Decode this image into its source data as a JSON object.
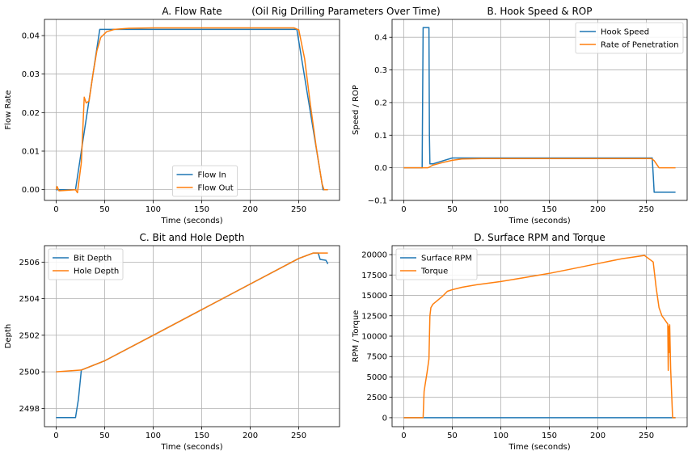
{
  "figure": {
    "suptitle": "(Oil Rig Drilling Parameters Over Time)"
  },
  "colors": {
    "blue": "#1f77b4",
    "orange": "#ff7f0e",
    "grid": "#b0b0b0"
  },
  "chart_data": [
    {
      "id": "A",
      "type": "line",
      "title": "A. Flow Rate",
      "xlabel": "Time (seconds)",
      "ylabel": "Flow Rate",
      "xlim": [
        -12,
        292
      ],
      "ylim": [
        -0.0028,
        0.0442
      ],
      "xticks": [
        0,
        50,
        100,
        150,
        200,
        250
      ],
      "yticks": [
        0.0,
        0.01,
        0.02,
        0.03,
        0.04
      ],
      "ytick_labels": [
        "0.00",
        "0.01",
        "0.02",
        "0.03",
        "0.04"
      ],
      "grid": true,
      "legend_position": "lower-center",
      "series": [
        {
          "name": "Flow In",
          "color": "#1f77b4",
          "x": [
            0,
            20,
            45,
            50,
            100,
            150,
            200,
            248,
            275,
            280
          ],
          "y": [
            0.0,
            0.0,
            0.0416,
            0.0416,
            0.0416,
            0.0416,
            0.0416,
            0.0416,
            0.0,
            0.0
          ]
        },
        {
          "name": "Flow Out",
          "color": "#ff7f0e",
          "x": [
            0,
            1,
            3,
            20,
            22,
            26,
            29,
            31,
            34,
            38,
            42,
            46,
            52,
            60,
            75,
            100,
            150,
            200,
            245,
            250,
            256,
            262,
            268,
            274,
            276,
            280
          ],
          "y": [
            0.0,
            0.0008,
            -0.0003,
            0.0,
            -0.0008,
            0.007,
            0.024,
            0.0225,
            0.023,
            0.03,
            0.036,
            0.0395,
            0.041,
            0.0416,
            0.0419,
            0.042,
            0.042,
            0.042,
            0.042,
            0.0415,
            0.034,
            0.022,
            0.011,
            0.0015,
            0.0,
            0.0
          ]
        }
      ]
    },
    {
      "id": "B",
      "type": "line",
      "title": "B. Hook Speed & ROP",
      "xlabel": "Time (seconds)",
      "ylabel": "Speed / ROP",
      "xlim": [
        -12,
        292
      ],
      "ylim": [
        -0.1,
        0.455
      ],
      "xticks": [
        0,
        50,
        100,
        150,
        200,
        250
      ],
      "yticks": [
        -0.1,
        0.0,
        0.1,
        0.2,
        0.3,
        0.4
      ],
      "ytick_labels": [
        "−0.1",
        "0.0",
        "0.1",
        "0.2",
        "0.3",
        "0.4"
      ],
      "grid": true,
      "legend_position": "upper-right",
      "series": [
        {
          "name": "Hook Speed",
          "color": "#1f77b4",
          "x": [
            0,
            19,
            20,
            21,
            26,
            26.5,
            27,
            30,
            50,
            100,
            150,
            200,
            256,
            257,
            258,
            280
          ],
          "y": [
            0.0,
            0.0,
            0.43,
            0.43,
            0.43,
            0.1,
            0.012,
            0.012,
            0.03,
            0.03,
            0.03,
            0.03,
            0.03,
            -0.02,
            -0.075,
            -0.075
          ]
        },
        {
          "name": "Rate of Penetration",
          "color": "#ff7f0e",
          "x": [
            0,
            25,
            30,
            40,
            50,
            60,
            80,
            100,
            150,
            200,
            255,
            258,
            263,
            280
          ],
          "y": [
            0.0,
            0.0,
            0.008,
            0.016,
            0.023,
            0.027,
            0.028,
            0.028,
            0.028,
            0.028,
            0.028,
            0.022,
            0.0,
            0.0
          ]
        }
      ]
    },
    {
      "id": "C",
      "type": "line",
      "title": "C. Bit and Hole Depth",
      "xlabel": "Time (seconds)",
      "ylabel": "Depth",
      "xlim": [
        -12,
        292
      ],
      "ylim": [
        2497.0,
        2506.9
      ],
      "xticks": [
        0,
        50,
        100,
        150,
        200,
        250
      ],
      "yticks": [
        2498,
        2500,
        2502,
        2504,
        2506
      ],
      "ytick_labels": [
        "2498",
        "2500",
        "2502",
        "2504",
        "2506"
      ],
      "grid": true,
      "legend_position": "upper-left",
      "series": [
        {
          "name": "Bit Depth",
          "color": "#1f77b4",
          "x": [
            0,
            20,
            23,
            26,
            50,
            100,
            150,
            200,
            250,
            265,
            270,
            272,
            278,
            280
          ],
          "y": [
            2497.5,
            2497.5,
            2498.5,
            2500.1,
            2500.6,
            2502.0,
            2503.4,
            2504.8,
            2506.2,
            2506.5,
            2506.5,
            2506.15,
            2506.1,
            2505.9
          ]
        },
        {
          "name": "Hole Depth",
          "color": "#ff7f0e",
          "x": [
            0,
            26,
            50,
            100,
            150,
            200,
            250,
            265,
            280
          ],
          "y": [
            2500.0,
            2500.1,
            2500.6,
            2502.0,
            2503.4,
            2504.8,
            2506.2,
            2506.5,
            2506.5
          ]
        }
      ]
    },
    {
      "id": "D",
      "type": "line",
      "title": "D. Surface RPM and Torque",
      "xlabel": "Time (seconds)",
      "ylabel": "RPM / Torque",
      "xlim": [
        -12,
        292
      ],
      "ylim": [
        -1100,
        21100
      ],
      "xticks": [
        0,
        50,
        100,
        150,
        200,
        250
      ],
      "yticks": [
        0,
        2500,
        5000,
        7500,
        10000,
        12500,
        15000,
        17500,
        20000
      ],
      "ytick_labels": [
        "0",
        "2500",
        "5000",
        "7500",
        "10000",
        "12500",
        "15000",
        "17500",
        "20000"
      ],
      "grid": true,
      "legend_position": "upper-left",
      "series": [
        {
          "name": "Surface RPM",
          "color": "#1f77b4",
          "x": [
            0,
            280
          ],
          "y": [
            0,
            0
          ]
        },
        {
          "name": "Torque",
          "color": "#ff7f0e",
          "x": [
            0,
            20,
            21,
            22,
            24,
            26,
            27,
            28,
            30,
            35,
            40,
            45,
            50,
            60,
            75,
            100,
            125,
            150,
            175,
            200,
            225,
            248,
            257,
            260,
            263,
            266,
            269,
            272,
            272.5,
            273,
            273.5,
            274,
            275,
            277,
            278,
            280
          ],
          "y": [
            0,
            0,
            3200,
            4000,
            5500,
            7200,
            12500,
            13500,
            13900,
            14400,
            14900,
            15500,
            15700,
            16000,
            16300,
            16700,
            17200,
            17700,
            18300,
            18900,
            19500,
            19900,
            19100,
            16000,
            13500,
            12500,
            12000,
            11500,
            5800,
            11200,
            8000,
            11400,
            6000,
            0,
            0,
            0
          ]
        }
      ]
    }
  ]
}
